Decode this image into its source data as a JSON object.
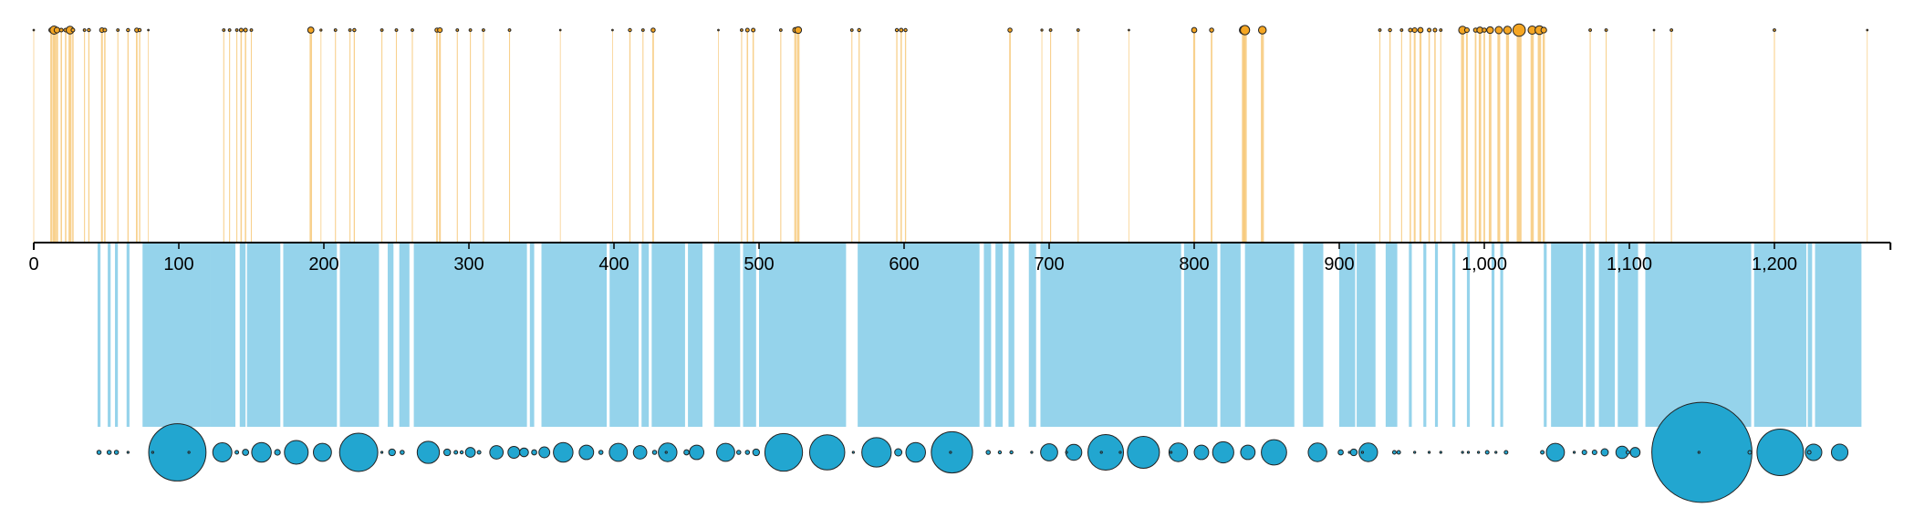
{
  "chart_data": {
    "type": "timeline",
    "title": "",
    "xlabel": "",
    "ylabel": "",
    "xlim": [
      0,
      1280
    ],
    "x_ticks": [
      0,
      100,
      200,
      300,
      400,
      500,
      600,
      700,
      800,
      900,
      1000,
      1100,
      1200
    ],
    "x_tick_labels": [
      "0",
      "100",
      "200",
      "300",
      "400",
      "500",
      "600",
      "700",
      "800",
      "900",
      "1,000",
      "1,100",
      "1,200"
    ],
    "colors": {
      "top_series": "#f5a623",
      "top_band": "#f7c97a",
      "bottom_series": "#22a6d0",
      "bottom_band": "#8fd1ea",
      "axis": "#000000"
    },
    "series": [
      {
        "position": "above-axis",
        "marker": "circle",
        "events": [
          {
            "x": 0,
            "r": 0.3
          },
          {
            "x": 12,
            "r": 0.9
          },
          {
            "x": 14,
            "r": 1.6
          },
          {
            "x": 16,
            "r": 1.1
          },
          {
            "x": 19,
            "r": 0.7
          },
          {
            "x": 22,
            "r": 0.7
          },
          {
            "x": 25,
            "r": 1.5
          },
          {
            "x": 27,
            "r": 0.7
          },
          {
            "x": 35,
            "r": 0.5
          },
          {
            "x": 38,
            "r": 0.6
          },
          {
            "x": 47,
            "r": 0.9
          },
          {
            "x": 49,
            "r": 0.7
          },
          {
            "x": 58,
            "r": 0.5
          },
          {
            "x": 65,
            "r": 0.6
          },
          {
            "x": 71,
            "r": 0.8
          },
          {
            "x": 73,
            "r": 0.6
          },
          {
            "x": 79,
            "r": 0.3
          },
          {
            "x": 131,
            "r": 0.5
          },
          {
            "x": 135,
            "r": 0.5
          },
          {
            "x": 140,
            "r": 0.5
          },
          {
            "x": 143,
            "r": 0.7
          },
          {
            "x": 146,
            "r": 0.7
          },
          {
            "x": 150,
            "r": 0.5
          },
          {
            "x": 191,
            "r": 1.2
          },
          {
            "x": 198,
            "r": 0.4
          },
          {
            "x": 208,
            "r": 0.5
          },
          {
            "x": 218,
            "r": 0.5
          },
          {
            "x": 221,
            "r": 0.6
          },
          {
            "x": 240,
            "r": 0.5
          },
          {
            "x": 250,
            "r": 0.5
          },
          {
            "x": 261,
            "r": 0.5
          },
          {
            "x": 278,
            "r": 0.8
          },
          {
            "x": 280,
            "r": 0.9
          },
          {
            "x": 292,
            "r": 0.5
          },
          {
            "x": 301,
            "r": 0.5
          },
          {
            "x": 310,
            "r": 0.5
          },
          {
            "x": 328,
            "r": 0.5
          },
          {
            "x": 363,
            "r": 0.3
          },
          {
            "x": 399,
            "r": 0.3
          },
          {
            "x": 411,
            "r": 0.6
          },
          {
            "x": 420,
            "r": 0.5
          },
          {
            "x": 427,
            "r": 0.8
          },
          {
            "x": 472,
            "r": 0.3
          },
          {
            "x": 488,
            "r": 0.5
          },
          {
            "x": 492,
            "r": 0.7
          },
          {
            "x": 496,
            "r": 0.7
          },
          {
            "x": 515,
            "r": 0.5
          },
          {
            "x": 525,
            "r": 1.0
          },
          {
            "x": 527,
            "r": 1.3
          },
          {
            "x": 564,
            "r": 0.5
          },
          {
            "x": 569,
            "r": 0.6
          },
          {
            "x": 595,
            "r": 0.6
          },
          {
            "x": 598,
            "r": 0.7
          },
          {
            "x": 601,
            "r": 0.6
          },
          {
            "x": 673,
            "r": 0.8
          },
          {
            "x": 695,
            "r": 0.4
          },
          {
            "x": 701,
            "r": 0.5
          },
          {
            "x": 720,
            "r": 0.5
          },
          {
            "x": 755,
            "r": 0.3
          },
          {
            "x": 800,
            "r": 1.0
          },
          {
            "x": 812,
            "r": 0.8
          },
          {
            "x": 834,
            "r": 1.6
          },
          {
            "x": 835,
            "r": 1.8
          },
          {
            "x": 847,
            "r": 1.5
          },
          {
            "x": 928,
            "r": 0.5
          },
          {
            "x": 935,
            "r": 0.6
          },
          {
            "x": 943,
            "r": 0.5
          },
          {
            "x": 949,
            "r": 0.7
          },
          {
            "x": 952,
            "r": 0.9
          },
          {
            "x": 956,
            "r": 1.0
          },
          {
            "x": 962,
            "r": 0.7
          },
          {
            "x": 966,
            "r": 0.7
          },
          {
            "x": 970,
            "r": 0.5
          },
          {
            "x": 985,
            "r": 1.5
          },
          {
            "x": 988,
            "r": 0.9
          },
          {
            "x": 994,
            "r": 0.8
          },
          {
            "x": 997,
            "r": 1.2
          },
          {
            "x": 1000,
            "r": 0.8
          },
          {
            "x": 1004,
            "r": 1.3
          },
          {
            "x": 1010,
            "r": 1.4
          },
          {
            "x": 1016,
            "r": 1.5
          },
          {
            "x": 1024,
            "r": 2.4
          },
          {
            "x": 1033,
            "r": 1.6
          },
          {
            "x": 1038,
            "r": 1.7
          },
          {
            "x": 1041,
            "r": 1.1
          },
          {
            "x": 1073,
            "r": 0.5
          },
          {
            "x": 1084,
            "r": 0.5
          },
          {
            "x": 1117,
            "r": 0.3
          },
          {
            "x": 1129,
            "r": 0.5
          },
          {
            "x": 1200,
            "r": 0.5
          },
          {
            "x": 1264,
            "r": 0.3
          }
        ]
      },
      {
        "position": "below-axis",
        "marker": "circle",
        "events": [
          {
            "x": 45,
            "r": 0.8
          },
          {
            "x": 52,
            "r": 0.8
          },
          {
            "x": 57,
            "r": 0.8
          },
          {
            "x": 65,
            "r": 0.4
          },
          {
            "x": 82,
            "r": 0.4
          },
          {
            "x": 99,
            "r": 11.1
          },
          {
            "x": 107,
            "r": 0.4
          },
          {
            "x": 130,
            "r": 3.7
          },
          {
            "x": 140,
            "r": 0.7
          },
          {
            "x": 146,
            "r": 1.2
          },
          {
            "x": 157,
            "r": 3.8
          },
          {
            "x": 168,
            "r": 1.1
          },
          {
            "x": 181,
            "r": 4.6
          },
          {
            "x": 199,
            "r": 3.5
          },
          {
            "x": 224,
            "r": 7.4
          },
          {
            "x": 240,
            "r": 0.4
          },
          {
            "x": 247,
            "r": 1.3
          },
          {
            "x": 254,
            "r": 0.8
          },
          {
            "x": 272,
            "r": 4.3
          },
          {
            "x": 285,
            "r": 1.3
          },
          {
            "x": 291,
            "r": 0.7
          },
          {
            "x": 295,
            "r": 0.6
          },
          {
            "x": 301,
            "r": 1.9
          },
          {
            "x": 307,
            "r": 0.7
          },
          {
            "x": 319,
            "r": 2.6
          },
          {
            "x": 331,
            "r": 2.3
          },
          {
            "x": 338,
            "r": 1.7
          },
          {
            "x": 345,
            "r": 1.0
          },
          {
            "x": 352,
            "r": 2.1
          },
          {
            "x": 365,
            "r": 3.8
          },
          {
            "x": 381,
            "r": 2.8
          },
          {
            "x": 391,
            "r": 0.8
          },
          {
            "x": 403,
            "r": 3.5
          },
          {
            "x": 418,
            "r": 2.6
          },
          {
            "x": 428,
            "r": 0.8
          },
          {
            "x": 436,
            "r": 0.4
          },
          {
            "x": 437,
            "r": 3.6
          },
          {
            "x": 450,
            "r": 1.0
          },
          {
            "x": 457,
            "r": 2.8
          },
          {
            "x": 477,
            "r": 3.5
          },
          {
            "x": 486,
            "r": 0.8
          },
          {
            "x": 492,
            "r": 0.8
          },
          {
            "x": 498,
            "r": 1.3
          },
          {
            "x": 517,
            "r": 7.3
          },
          {
            "x": 547,
            "r": 6.8
          },
          {
            "x": 565,
            "r": 0.4
          },
          {
            "x": 581,
            "r": 5.7
          },
          {
            "x": 596,
            "r": 1.4
          },
          {
            "x": 608,
            "r": 3.8
          },
          {
            "x": 632,
            "r": 0.4
          },
          {
            "x": 633,
            "r": 8.0
          },
          {
            "x": 658,
            "r": 0.8
          },
          {
            "x": 666,
            "r": 0.6
          },
          {
            "x": 674,
            "r": 0.6
          },
          {
            "x": 688,
            "r": 0.4
          },
          {
            "x": 700,
            "r": 3.3
          },
          {
            "x": 712,
            "r": 0.4
          },
          {
            "x": 717,
            "r": 3.1
          },
          {
            "x": 736,
            "r": 0.4
          },
          {
            "x": 739,
            "r": 6.9
          },
          {
            "x": 749,
            "r": 0.4
          },
          {
            "x": 765,
            "r": 6.2
          },
          {
            "x": 784,
            "r": 0.4
          },
          {
            "x": 789,
            "r": 3.6
          },
          {
            "x": 805,
            "r": 2.8
          },
          {
            "x": 820,
            "r": 4.1
          },
          {
            "x": 837,
            "r": 2.8
          },
          {
            "x": 855,
            "r": 4.9
          },
          {
            "x": 885,
            "r": 3.6
          },
          {
            "x": 901,
            "r": 1.0
          },
          {
            "x": 907,
            "r": 0.4
          },
          {
            "x": 910,
            "r": 1.3
          },
          {
            "x": 916,
            "r": 0.4
          },
          {
            "x": 920,
            "r": 3.6
          },
          {
            "x": 938,
            "r": 0.7
          },
          {
            "x": 941,
            "r": 0.7
          },
          {
            "x": 952,
            "r": 0.4
          },
          {
            "x": 962,
            "r": 0.4
          },
          {
            "x": 970,
            "r": 0.4
          },
          {
            "x": 985,
            "r": 0.4
          },
          {
            "x": 989,
            "r": 0.4
          },
          {
            "x": 996,
            "r": 0.4
          },
          {
            "x": 1002,
            "r": 0.7
          },
          {
            "x": 1008,
            "r": 0.4
          },
          {
            "x": 1015,
            "r": 0.7
          },
          {
            "x": 1040,
            "r": 0.7
          },
          {
            "x": 1049,
            "r": 3.5
          },
          {
            "x": 1062,
            "r": 0.4
          },
          {
            "x": 1069,
            "r": 0.9
          },
          {
            "x": 1076,
            "r": 0.9
          },
          {
            "x": 1083,
            "r": 1.4
          },
          {
            "x": 1095,
            "r": 2.4
          },
          {
            "x": 1099,
            "r": 0.7
          },
          {
            "x": 1104,
            "r": 1.9
          },
          {
            "x": 1148,
            "r": 0.4
          },
          {
            "x": 1150,
            "r": 19.4
          },
          {
            "x": 1183,
            "r": 0.7
          },
          {
            "x": 1204,
            "r": 9.0
          },
          {
            "x": 1224,
            "r": 0.7
          },
          {
            "x": 1227,
            "r": 3.2
          },
          {
            "x": 1245,
            "r": 3.2
          }
        ],
        "bands": [
          {
            "x0": 44,
            "x1": 46
          },
          {
            "x0": 51,
            "x1": 53
          },
          {
            "x0": 56,
            "x1": 58
          },
          {
            "x0": 64,
            "x1": 66
          },
          {
            "x0": 75,
            "x1": 122
          },
          {
            "x0": 122,
            "x1": 139
          },
          {
            "x0": 142,
            "x1": 146
          },
          {
            "x0": 147,
            "x1": 170
          },
          {
            "x0": 172,
            "x1": 209
          },
          {
            "x0": 211,
            "x1": 238
          },
          {
            "x0": 244,
            "x1": 248
          },
          {
            "x0": 252,
            "x1": 259
          },
          {
            "x0": 262,
            "x1": 340
          },
          {
            "x0": 342,
            "x1": 345
          },
          {
            "x0": 350,
            "x1": 395
          },
          {
            "x0": 397,
            "x1": 417
          },
          {
            "x0": 419,
            "x1": 424
          },
          {
            "x0": 426,
            "x1": 449
          },
          {
            "x0": 451,
            "x1": 461
          },
          {
            "x0": 469,
            "x1": 487
          },
          {
            "x0": 489,
            "x1": 498
          },
          {
            "x0": 500,
            "x1": 560
          },
          {
            "x0": 568,
            "x1": 652
          },
          {
            "x0": 655,
            "x1": 660
          },
          {
            "x0": 663,
            "x1": 668
          },
          {
            "x0": 672,
            "x1": 676
          },
          {
            "x0": 686,
            "x1": 691
          },
          {
            "x0": 694,
            "x1": 791
          },
          {
            "x0": 793,
            "x1": 816
          },
          {
            "x0": 818,
            "x1": 832
          },
          {
            "x0": 835,
            "x1": 869
          },
          {
            "x0": 875,
            "x1": 889
          },
          {
            "x0": 900,
            "x1": 911
          },
          {
            "x0": 912,
            "x1": 925
          },
          {
            "x0": 932,
            "x1": 940
          },
          {
            "x0": 948,
            "x1": 950
          },
          {
            "x0": 958,
            "x1": 960
          },
          {
            "x0": 966,
            "x1": 968
          },
          {
            "x0": 978,
            "x1": 980
          },
          {
            "x0": 988,
            "x1": 990
          },
          {
            "x0": 1005,
            "x1": 1007
          },
          {
            "x0": 1011,
            "x1": 1013
          },
          {
            "x0": 1041,
            "x1": 1043
          },
          {
            "x0": 1046,
            "x1": 1068
          },
          {
            "x0": 1070,
            "x1": 1076
          },
          {
            "x0": 1079,
            "x1": 1090
          },
          {
            "x0": 1092,
            "x1": 1106
          },
          {
            "x0": 1111,
            "x1": 1184
          },
          {
            "x0": 1186,
            "x1": 1222
          },
          {
            "x0": 1223,
            "x1": 1226
          },
          {
            "x0": 1228,
            "x1": 1260
          }
        ]
      }
    ]
  }
}
